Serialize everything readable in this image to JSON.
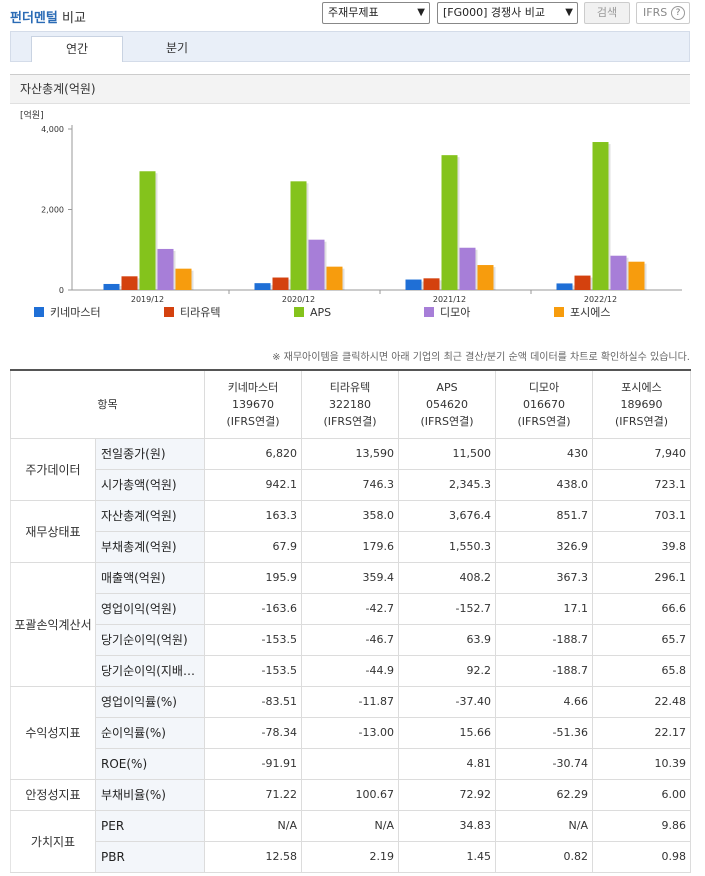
{
  "header": {
    "title_accent": "펀더멘털",
    "title_rest": "비교",
    "select_statement": "주재무제표",
    "select_compare": "[FG000] 경쟁사 비교",
    "search_label": "검색",
    "ifrs_label": "IFRS",
    "help_glyph": "?"
  },
  "tabs": [
    {
      "label": "연간",
      "active": true
    },
    {
      "label": "분기",
      "active": false
    }
  ],
  "chart_section": {
    "title": "자산총계(억원)"
  },
  "chart_data": {
    "type": "bar",
    "unit_label": "[억원]",
    "categories": [
      "2019/12",
      "2020/12",
      "2021/12",
      "2022/12"
    ],
    "ylim": [
      0,
      4000
    ],
    "yticks": [
      0,
      2000,
      4000
    ],
    "ytick_labels": [
      "0",
      "2,000",
      "4,000"
    ],
    "grid": false,
    "legend_position": "bottom",
    "series": [
      {
        "name": "키네마스터",
        "color": "#1f6fd6",
        "values": [
          150,
          170,
          260,
          163.3
        ]
      },
      {
        "name": "티라유텍",
        "color": "#d4410e",
        "values": [
          340,
          310,
          290,
          358.0
        ]
      },
      {
        "name": "APS",
        "color": "#84c31c",
        "values": [
          2950,
          2700,
          3350,
          3676.4
        ]
      },
      {
        "name": "디모아",
        "color": "#a77ed8",
        "values": [
          1020,
          1250,
          1050,
          851.7
        ]
      },
      {
        "name": "포시에스",
        "color": "#f79c0d",
        "values": [
          530,
          580,
          620,
          703.1
        ]
      }
    ]
  },
  "notice": "※ 재무아이템을 클릭하시면 아래 기업의 최근 결산/분기 순액 데이터를 차트로 확인하실수 있습니다.",
  "table": {
    "item_header": "항목",
    "companies": [
      {
        "name": "키네마스터",
        "code": "139670",
        "basis": "(IFRS연결)"
      },
      {
        "name": "티라유텍",
        "code": "322180",
        "basis": "(IFRS연결)"
      },
      {
        "name": "APS",
        "code": "054620",
        "basis": "(IFRS연결)"
      },
      {
        "name": "디모아",
        "code": "016670",
        "basis": "(IFRS연결)"
      },
      {
        "name": "포시에스",
        "code": "189690",
        "basis": "(IFRS연결)"
      }
    ],
    "groups": [
      {
        "name": "주가데이터",
        "rows": [
          {
            "item": "전일종가(원)",
            "values": [
              "6,820",
              "13,590",
              "11,500",
              "430",
              "7,940"
            ]
          },
          {
            "item": "시가총액(억원)",
            "values": [
              "942.1",
              "746.3",
              "2,345.3",
              "438.0",
              "723.1"
            ]
          }
        ]
      },
      {
        "name": "재무상태표",
        "rows": [
          {
            "item": "자산총계(억원)",
            "values": [
              "163.3",
              "358.0",
              "3,676.4",
              "851.7",
              "703.1"
            ]
          },
          {
            "item": "부채총계(억원)",
            "values": [
              "67.9",
              "179.6",
              "1,550.3",
              "326.9",
              "39.8"
            ]
          }
        ]
      },
      {
        "name": "포괄손익계산서",
        "rows": [
          {
            "item": "매출액(억원)",
            "values": [
              "195.9",
              "359.4",
              "408.2",
              "367.3",
              "296.1"
            ]
          },
          {
            "item": "영업이익(억원)",
            "values": [
              "-163.6",
              "-42.7",
              "-152.7",
              "17.1",
              "66.6"
            ]
          },
          {
            "item": "당기순이익(억원)",
            "values": [
              "-153.5",
              "-46.7",
              "63.9",
              "-188.7",
              "65.7"
            ]
          },
          {
            "item": "당기순이익(지배…",
            "values": [
              "-153.5",
              "-44.9",
              "92.2",
              "-188.7",
              "65.8"
            ]
          }
        ]
      },
      {
        "name": "수익성지표",
        "rows": [
          {
            "item": "영업이익률(%)",
            "values": [
              "-83.51",
              "-11.87",
              "-37.40",
              "4.66",
              "22.48"
            ]
          },
          {
            "item": "순이익률(%)",
            "values": [
              "-78.34",
              "-13.00",
              "15.66",
              "-51.36",
              "22.17"
            ]
          },
          {
            "item": "ROE(%)",
            "values": [
              "-91.91",
              "",
              "4.81",
              "-30.74",
              "10.39"
            ]
          }
        ]
      },
      {
        "name": "안정성지표",
        "rows": [
          {
            "item": "부채비율(%)",
            "values": [
              "71.22",
              "100.67",
              "72.92",
              "62.29",
              "6.00"
            ]
          }
        ]
      },
      {
        "name": "가치지표",
        "rows": [
          {
            "item": "PER",
            "values": [
              "N/A",
              "N/A",
              "34.83",
              "N/A",
              "9.86"
            ]
          },
          {
            "item": "PBR",
            "values": [
              "12.58",
              "2.19",
              "1.45",
              "0.82",
              "0.98"
            ]
          }
        ]
      }
    ]
  }
}
